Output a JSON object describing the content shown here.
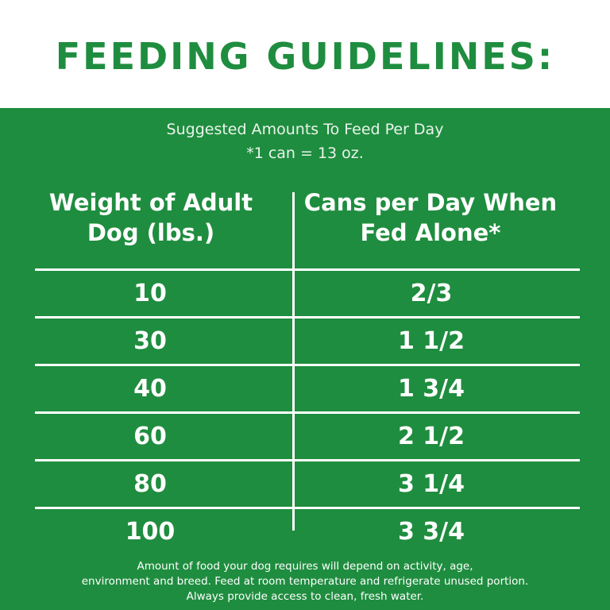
{
  "title": "FEEDING GUIDELINES:",
  "subtitle": {
    "line1": "Suggested Amounts To Feed Per Day",
    "line2": "*1 can = 13 oz."
  },
  "table": {
    "headers": {
      "weight": [
        "Weight of Adult",
        "Dog (lbs.)"
      ],
      "cans": [
        "Cans per Day When",
        "Fed Alone*"
      ]
    },
    "rows": [
      {
        "weight": "10",
        "cans": "2/3"
      },
      {
        "weight": "30",
        "cans": "1 1/2"
      },
      {
        "weight": "40",
        "cans": "1 3/4"
      },
      {
        "weight": "60",
        "cans": "2 1/2"
      },
      {
        "weight": "80",
        "cans": "3 1/4"
      },
      {
        "weight": "100",
        "cans": "3 3/4"
      }
    ]
  },
  "footnote": [
    "Amount of food your dog requires will depend on activity, age,",
    "environment and breed. Feed at room temperature and refrigerate unused portion.",
    "Always provide access to clean, fresh water."
  ],
  "colors": {
    "brand_green": "#1f8d3f",
    "text_on_green": "#ffffff"
  }
}
